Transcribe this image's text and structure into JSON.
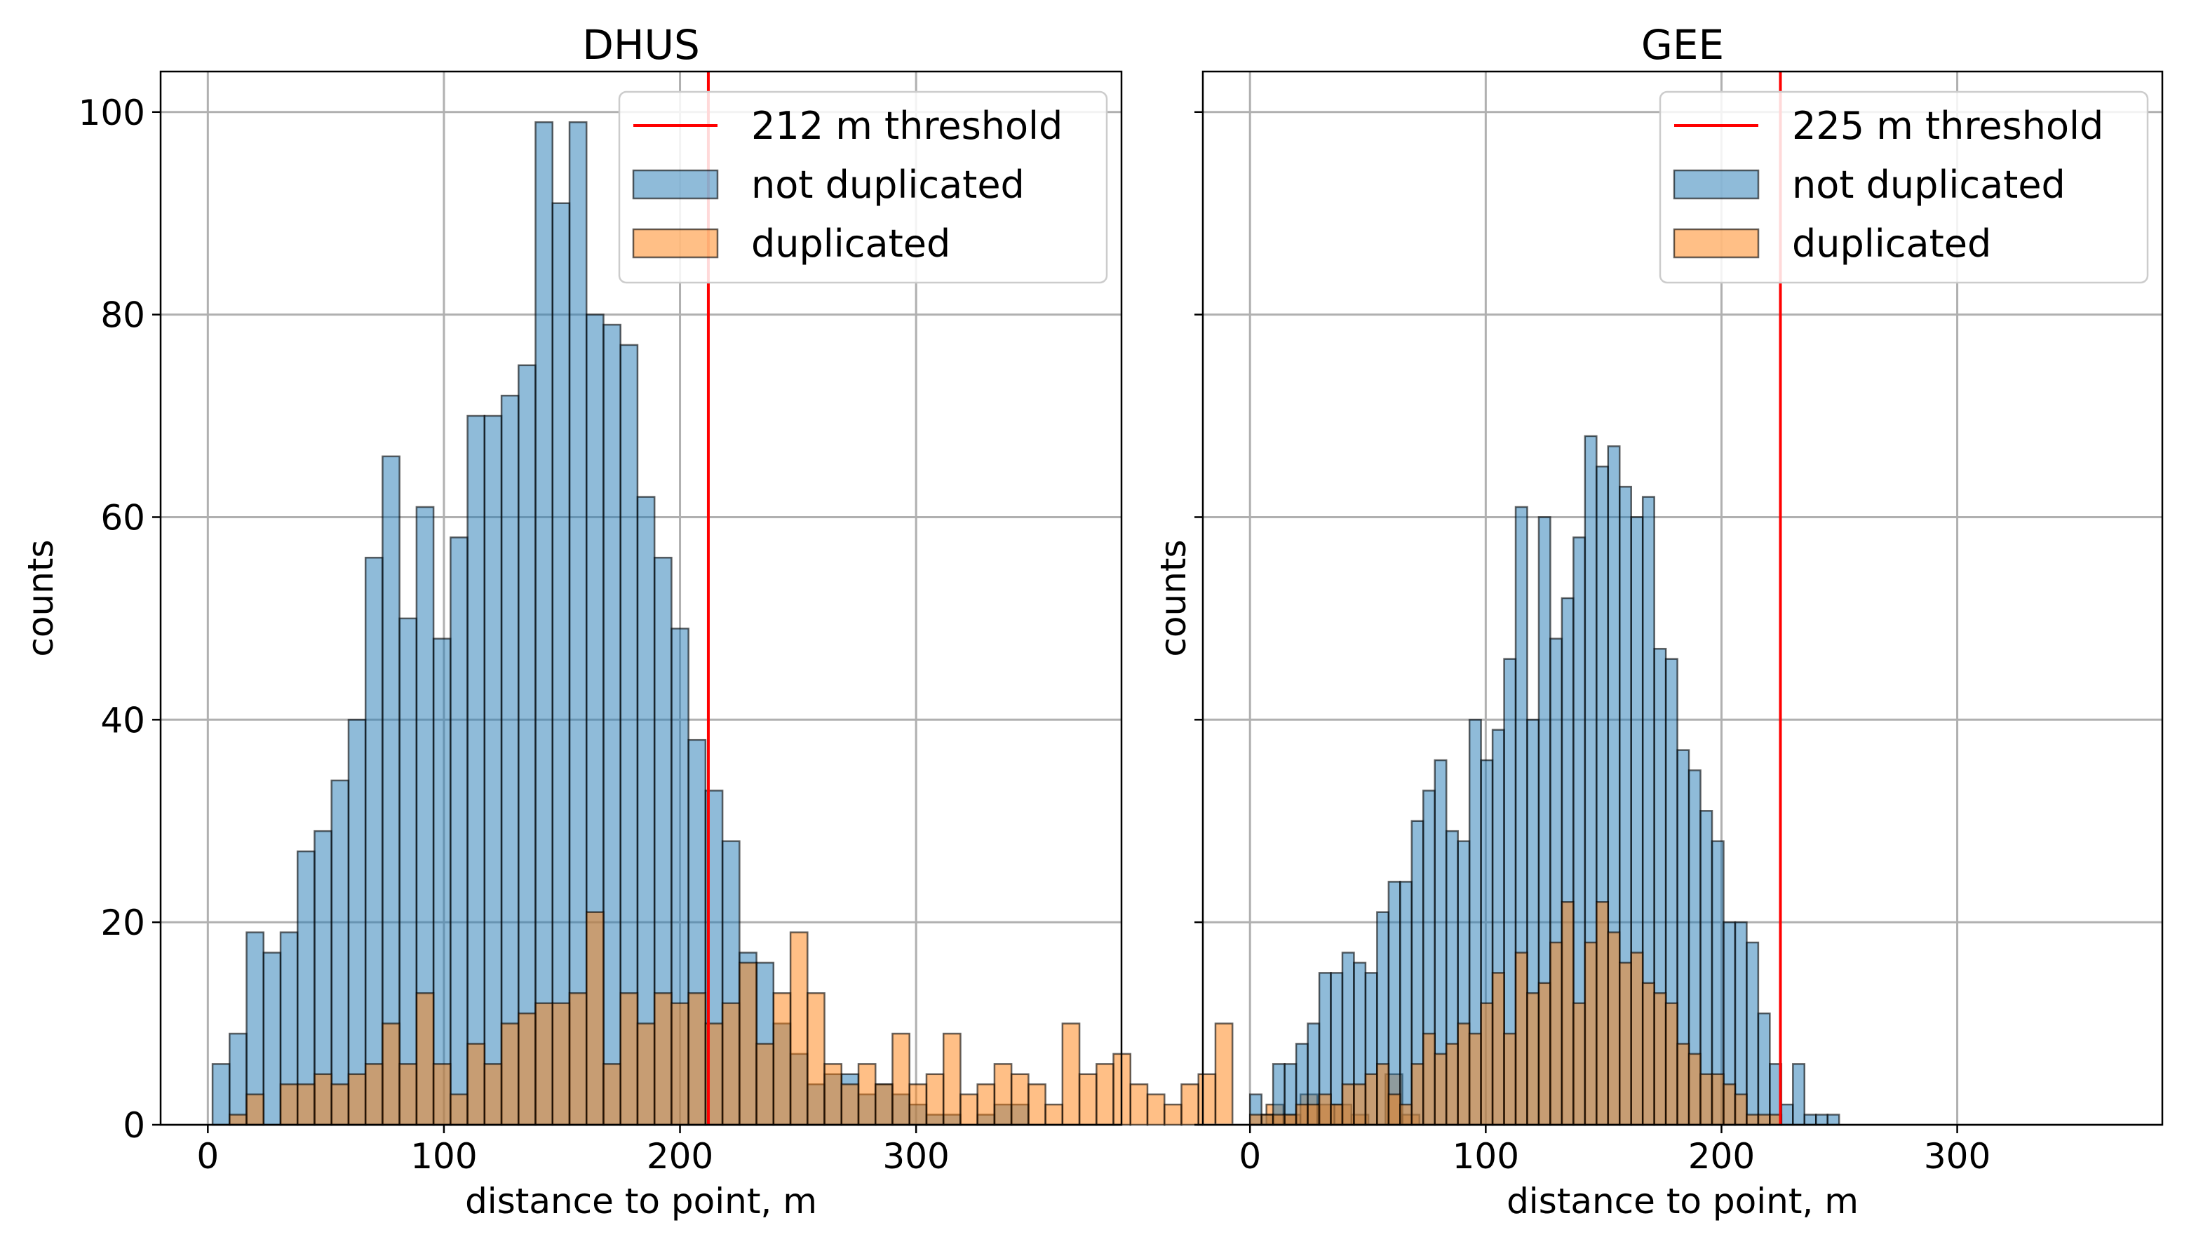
{
  "chart_data": [
    {
      "type": "bar",
      "title": "DHUS",
      "xlabel": "distance to point, m",
      "ylabel": "counts",
      "xlim": [
        -20,
        387
      ],
      "ylim": [
        0,
        104
      ],
      "xticks": [
        0,
        100,
        200,
        300
      ],
      "yticks": [
        0,
        20,
        40,
        60,
        80,
        100
      ],
      "xtick_labels": [
        "0",
        "100",
        "200",
        "300"
      ],
      "ytick_labels": [
        "0",
        "20",
        "40",
        "60",
        "80",
        "100"
      ],
      "show_ytick_labels": true,
      "grid": true,
      "legend_placement": "top-right",
      "threshold": {
        "value": 212,
        "label": "212 m threshold",
        "color": "#ff0000"
      },
      "series": [
        {
          "name": "not duplicated",
          "color": "#1f77b4",
          "bin_start": 2,
          "bin_width": 7.2,
          "values": [
            6,
            9,
            19,
            17,
            19,
            27,
            29,
            34,
            40,
            56,
            66,
            50,
            61,
            48,
            58,
            70,
            70,
            72,
            75,
            99,
            91,
            99,
            80,
            79,
            77,
            62,
            56,
            49,
            38,
            33,
            28,
            17,
            16,
            10,
            7,
            4,
            5,
            5,
            3,
            4,
            3,
            2,
            1,
            1,
            0,
            1,
            2,
            2,
            0,
            0,
            0
          ]
        },
        {
          "name": "duplicated",
          "color": "#ff7f0e",
          "bin_start": 2,
          "bin_width": 7.2,
          "values": [
            0,
            1,
            3,
            0,
            4,
            4,
            5,
            4,
            5,
            6,
            10,
            6,
            13,
            6,
            3,
            8,
            6,
            10,
            11,
            12,
            12,
            13,
            21,
            6,
            13,
            10,
            13,
            12,
            13,
            10,
            12,
            16,
            8,
            13,
            19,
            13,
            6,
            4,
            6,
            4,
            9,
            4,
            5,
            9,
            3,
            4,
            6,
            5,
            4,
            2,
            10,
            5,
            6,
            7,
            4,
            3,
            2,
            4,
            5,
            10,
            0,
            0,
            2,
            1,
            3,
            2,
            2,
            1,
            0,
            5,
            1
          ]
        }
      ]
    },
    {
      "type": "bar",
      "title": "GEE",
      "xlabel": "distance to point, m",
      "ylabel": "counts",
      "xlim": [
        -20,
        387
      ],
      "ylim": [
        0,
        104
      ],
      "xticks": [
        0,
        100,
        200,
        300
      ],
      "yticks": [
        0,
        20,
        40,
        60,
        80,
        100
      ],
      "xtick_labels": [
        "0",
        "100",
        "200",
        "300"
      ],
      "ytick_labels": [
        "0",
        "20",
        "40",
        "60",
        "80",
        "100"
      ],
      "show_ytick_labels": false,
      "grid": true,
      "legend_placement": "top-right",
      "threshold": {
        "value": 225,
        "label": "225 m threshold",
        "color": "#ff0000"
      },
      "series": [
        {
          "name": "not duplicated",
          "color": "#1f77b4",
          "bin_start": 0,
          "bin_width": 4.9,
          "values": [
            3,
            1,
            6,
            6,
            8,
            10,
            15,
            15,
            17,
            16,
            15,
            21,
            24,
            24,
            30,
            33,
            36,
            29,
            28,
            40,
            36,
            39,
            46,
            61,
            40,
            60,
            48,
            52,
            58,
            68,
            65,
            67,
            63,
            60,
            62,
            47,
            46,
            37,
            35,
            31,
            28,
            20,
            20,
            18,
            11,
            6,
            2,
            6,
            1,
            1,
            1
          ]
        },
        {
          "name": "duplicated",
          "color": "#ff7f0e",
          "bin_start": 0,
          "bin_width": 4.9,
          "values": [
            1,
            1,
            1,
            1,
            2,
            2,
            3,
            2,
            4,
            4,
            5,
            6,
            3,
            2,
            6,
            9,
            7,
            8,
            10,
            9,
            12,
            15,
            9,
            17,
            13,
            14,
            18,
            22,
            12,
            18,
            22,
            19,
            16,
            17,
            14,
            13,
            12,
            8,
            7,
            5,
            5,
            4,
            3,
            1,
            1,
            1,
            0,
            0,
            0,
            0,
            0
          ]
        }
      ]
    }
  ]
}
